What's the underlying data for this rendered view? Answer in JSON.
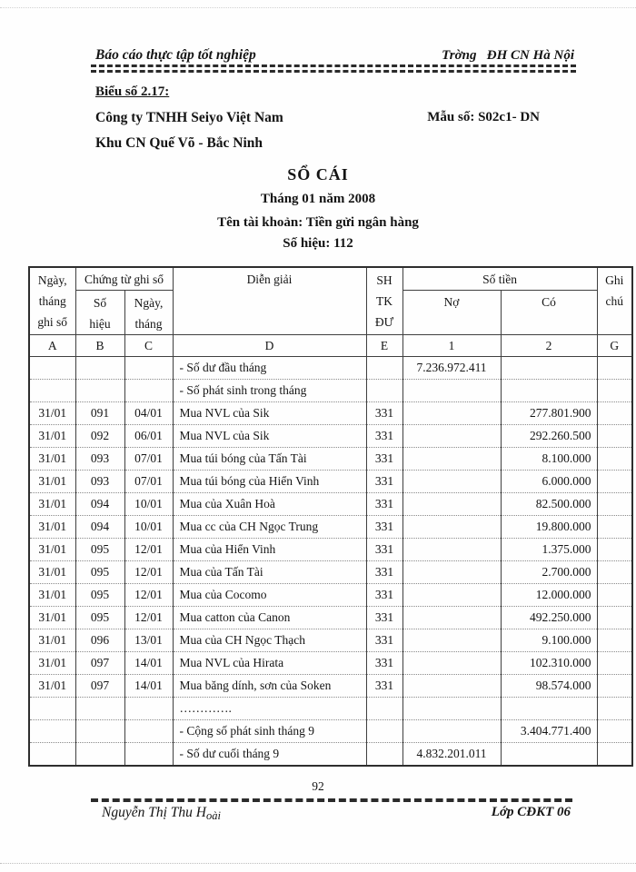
{
  "header": {
    "report_title": "Báo cáo thực tập tốt nghiệp",
    "school_name": "Trờng   ĐH CN Hà Nội",
    "form_label": "Biểu số 2.17:",
    "company_name": "Công ty TNHH Seiyo Việt Nam",
    "form_number": "Mẫu số: S02c1- DN",
    "company_address": "Khu CN Quế Võ - Bắc Ninh",
    "title": "SỔ CÁI",
    "period": "Tháng 01 năm 2008",
    "account_name": "Tên tài khoản: Tiền gửi ngân hàng",
    "account_number": "Số hiệu: 112"
  },
  "table": {
    "headers": {
      "col_date": [
        "Ngày,",
        "tháng",
        "ghi sổ"
      ],
      "group_voucher": "Chứng từ ghi sổ",
      "col_num": [
        "Số",
        "hiệu"
      ],
      "col_vdate": [
        "Ngày,",
        "tháng"
      ],
      "col_desc": "Diễn giải",
      "col_acc": [
        "SH",
        "TK",
        "ĐƯ"
      ],
      "group_amount": "Số tiền",
      "col_debit": "Nợ",
      "col_credit": "Có",
      "col_note": [
        "Ghi",
        "chú"
      ],
      "index_row": [
        "A",
        "B",
        "C",
        "D",
        "E",
        "1",
        "2",
        "G"
      ]
    },
    "rows": [
      {
        "date": "",
        "num": "",
        "vdate": "",
        "desc": "- Số dư đầu tháng",
        "acc": "",
        "debit": "7.236.972.411",
        "credit": "",
        "note": ""
      },
      {
        "date": "",
        "num": "",
        "vdate": "",
        "desc": "- Số phát sinh trong tháng",
        "acc": "",
        "debit": "",
        "credit": "",
        "note": ""
      },
      {
        "date": "31/01",
        "num": "091",
        "vdate": "04/01",
        "desc": "Mua NVL của Sik",
        "acc": "331",
        "debit": "",
        "credit": "277.801.900",
        "note": ""
      },
      {
        "date": "31/01",
        "num": "092",
        "vdate": "06/01",
        "desc": "Mua NVL của Sik",
        "acc": "331",
        "debit": "",
        "credit": "292.260.500",
        "note": ""
      },
      {
        "date": "31/01",
        "num": "093",
        "vdate": "07/01",
        "desc": "Mua túi bóng của Tấn Tài",
        "acc": "331",
        "debit": "",
        "credit": "8.100.000",
        "note": ""
      },
      {
        "date": "31/01",
        "num": "093",
        "vdate": "07/01",
        "desc": "Mua túi bóng của Hiển Vinh",
        "acc": "331",
        "debit": "",
        "credit": "6.000.000",
        "note": ""
      },
      {
        "date": "31/01",
        "num": "094",
        "vdate": "10/01",
        "desc": "Mua của Xuân Hoà",
        "acc": "331",
        "debit": "",
        "credit": "82.500.000",
        "note": ""
      },
      {
        "date": "31/01",
        "num": "094",
        "vdate": "10/01",
        "desc": "Mua cc của CH Ngọc Trung",
        "acc": "331",
        "debit": "",
        "credit": "19.800.000",
        "note": ""
      },
      {
        "date": "31/01",
        "num": "095",
        "vdate": "12/01",
        "desc": "Mua của Hiển Vinh",
        "acc": "331",
        "debit": "",
        "credit": "1.375.000",
        "note": ""
      },
      {
        "date": "31/01",
        "num": "095",
        "vdate": "12/01",
        "desc": "Mua của Tấn Tài",
        "acc": "331",
        "debit": "",
        "credit": "2.700.000",
        "note": ""
      },
      {
        "date": "31/01",
        "num": "095",
        "vdate": "12/01",
        "desc": "Mua của Cocomo",
        "acc": "331",
        "debit": "",
        "credit": "12.000.000",
        "note": ""
      },
      {
        "date": "31/01",
        "num": "095",
        "vdate": "12/01",
        "desc": "Mua catton của Canon",
        "acc": "331",
        "debit": "",
        "credit": "492.250.000",
        "note": ""
      },
      {
        "date": "31/01",
        "num": "096",
        "vdate": "13/01",
        "desc": "Mua của CH Ngọc Thạch",
        "acc": "331",
        "debit": "",
        "credit": "9.100.000",
        "note": ""
      },
      {
        "date": "31/01",
        "num": "097",
        "vdate": "14/01",
        "desc": "Mua NVL của Hirata",
        "acc": "331",
        "debit": "",
        "credit": "102.310.000",
        "note": ""
      },
      {
        "date": "31/01",
        "num": "097",
        "vdate": "14/01",
        "desc": "Mua băng dính, sơn của Soken",
        "acc": "331",
        "debit": "",
        "credit": "98.574.000",
        "note": ""
      },
      {
        "date": "",
        "num": "",
        "vdate": "",
        "desc": "………….",
        "acc": "",
        "debit": "",
        "credit": "",
        "note": ""
      },
      {
        "date": "",
        "num": "",
        "vdate": "",
        "desc": "- Cộng số phát sinh tháng 9",
        "acc": "",
        "debit": "",
        "credit": "3.404.771.400",
        "note": ""
      },
      {
        "date": "",
        "num": "",
        "vdate": "",
        "desc": "- Số dư cuối tháng 9",
        "acc": "",
        "debit": "4.832.201.011",
        "credit": "",
        "note": ""
      }
    ]
  },
  "footer": {
    "page_number": "92",
    "author_main": "Nguyễn Thị Thu H",
    "author_sub": "oài",
    "class_name": "Lớp CĐKT 06"
  }
}
